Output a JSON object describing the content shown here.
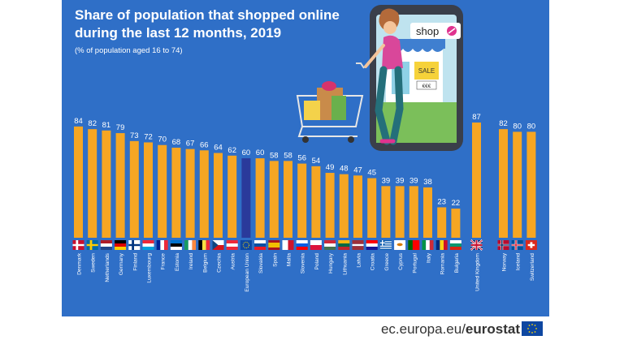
{
  "title_line1": "Share of population that shopped online",
  "title_line2": "during the last 12 months, 2019",
  "subtitle": "(% of population aged 16 to 74)",
  "footer": {
    "domain": "ec.europa.eu/",
    "brand": "eurostat"
  },
  "illustration": {
    "shop_sign": "shop",
    "sale_sign": "SALE",
    "price_sign": "€€€"
  },
  "colors": {
    "panel": "#2f6fc7",
    "bar": "#f6a623",
    "bar_eu": "#2a3a9b",
    "text": "#ffffff"
  },
  "chart_data": {
    "type": "bar",
    "title": "Share of population that shopped online during the last 12 months, 2019",
    "subtitle": "(% of population aged 16 to 74)",
    "ylim": [
      0,
      100
    ],
    "categories": [
      "Denmark",
      "Sweden",
      "Netherlands",
      "Germany",
      "Finland",
      "Luxembourg",
      "France",
      "Estonia",
      "Ireland",
      "Belgium",
      "Czechia",
      "Austria",
      "European Union",
      "Slovakia",
      "Spain",
      "Malta",
      "Slovenia",
      "Poland",
      "Hungary",
      "Lithuania",
      "Latvia",
      "Croatia",
      "Greece",
      "Cyprus",
      "Portugal",
      "Italy",
      "Romania",
      "Bulgaria",
      "United Kingdom",
      "Norway",
      "Iceland",
      "Switzerland"
    ],
    "values": [
      84,
      82,
      81,
      79,
      73,
      72,
      70,
      68,
      67,
      66,
      64,
      62,
      60,
      60,
      58,
      58,
      56,
      54,
      49,
      48,
      47,
      45,
      39,
      39,
      39,
      38,
      23,
      22,
      87,
      82,
      80,
      80
    ],
    "highlight": "European Union",
    "groups": [
      [
        0,
        27
      ],
      [
        28,
        28
      ],
      [
        29,
        31
      ]
    ],
    "flag_icons": [
      "denmark-flag-icon",
      "sweden-flag-icon",
      "netherlands-flag-icon",
      "germany-flag-icon",
      "finland-flag-icon",
      "luxembourg-flag-icon",
      "france-flag-icon",
      "estonia-flag-icon",
      "ireland-flag-icon",
      "belgium-flag-icon",
      "czechia-flag-icon",
      "austria-flag-icon",
      "eu-flag-icon",
      "slovakia-flag-icon",
      "spain-flag-icon",
      "malta-flag-icon",
      "slovenia-flag-icon",
      "poland-flag-icon",
      "hungary-flag-icon",
      "lithuania-flag-icon",
      "latvia-flag-icon",
      "croatia-flag-icon",
      "greece-flag-icon",
      "cyprus-flag-icon",
      "portugal-flag-icon",
      "italy-flag-icon",
      "romania-flag-icon",
      "bulgaria-flag-icon",
      "uk-flag-icon",
      "norway-flag-icon",
      "iceland-flag-icon",
      "switzerland-flag-icon"
    ]
  }
}
